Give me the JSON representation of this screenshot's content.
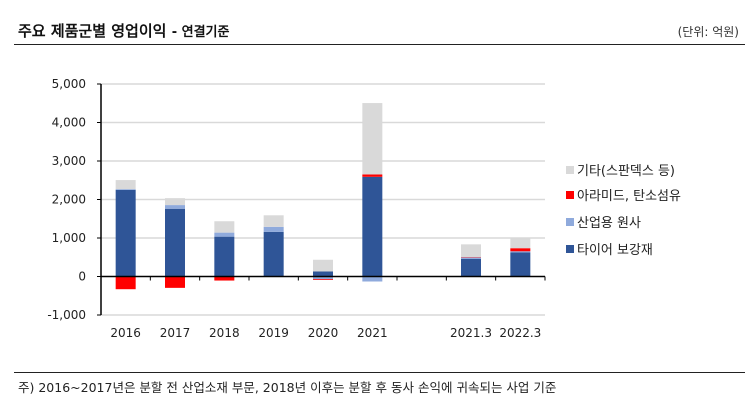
{
  "header": {
    "title": "주요 제품군별 영업이익",
    "subtitle": "- 연결기준",
    "unit": "(단위: 억원)"
  },
  "footnote": "주) 2016~2017년은 분할 전 산업소재 부문, 2018년 이후는 분할 후 동사 손익에 귀속되는 사업 기준",
  "chart_data": {
    "type": "bar",
    "stacked": true,
    "categories": [
      "2016",
      "2017",
      "2018",
      "2019",
      "2020",
      "2021",
      "",
      "2021.3",
      "2022.3"
    ],
    "ylim": [
      -1000,
      5000
    ],
    "yticks": [
      "5,000",
      "4,000",
      "3,000",
      "2,000",
      "1,000",
      "0",
      "-1,000"
    ],
    "ytick_values": [
      5000,
      4000,
      3000,
      2000,
      1000,
      0,
      -1000
    ],
    "grid": true,
    "legend": "right",
    "series": [
      {
        "name": "타이어 보강재",
        "color": "#2F5597",
        "values": [
          2250,
          1760,
          1035,
          1160,
          130,
          2590,
          null,
          455,
          625
        ]
      },
      {
        "name": "산업용 원사",
        "color": "#8FAADC",
        "values": [
          20,
          95,
          105,
          130,
          -70,
          -130,
          null,
          40,
          30
        ]
      },
      {
        "name": "아라미드, 탄소섬유",
        "color": "#FF0000",
        "values": [
          -330,
          -295,
          -105,
          0,
          -20,
          60,
          null,
          10,
          80
        ]
      },
      {
        "name": "기타(스판덱스 등)",
        "color": "#D9D9D9",
        "values": [
          235,
          180,
          295,
          300,
          305,
          1855,
          null,
          330,
          255
        ]
      }
    ]
  }
}
